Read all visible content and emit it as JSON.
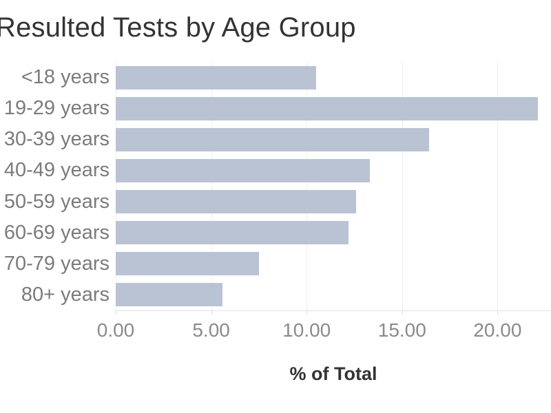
{
  "colors": {
    "bar": "#b9c3d3",
    "grid": "#efefef",
    "axis_line": "#e2e2e2",
    "tick_label": "#8a8a8a",
    "category_label": "#7b7b7b",
    "title": "#343434",
    "axis_title": "#333333"
  },
  "chart_data": {
    "type": "bar",
    "orientation": "horizontal",
    "title": "Resulted Tests by Age Group",
    "xlabel": "% of Total",
    "ylabel": "",
    "categories": [
      "<18 years",
      "19-29 years",
      "30-39 years",
      "40-49 years",
      "50-59 years",
      "60-69 years",
      "70-79 years",
      "80+ years"
    ],
    "values": [
      10.5,
      22.1,
      16.4,
      13.3,
      12.6,
      12.2,
      7.5,
      5.6
    ],
    "xlim": [
      0,
      22.8
    ],
    "x_ticks": {
      "values": [
        0,
        5,
        10,
        15,
        20
      ],
      "labels": [
        "0.00",
        "5.00",
        "10.00",
        "15.00",
        "20.00"
      ]
    },
    "grid": "vertical-gridlines-only",
    "legend": "none"
  }
}
